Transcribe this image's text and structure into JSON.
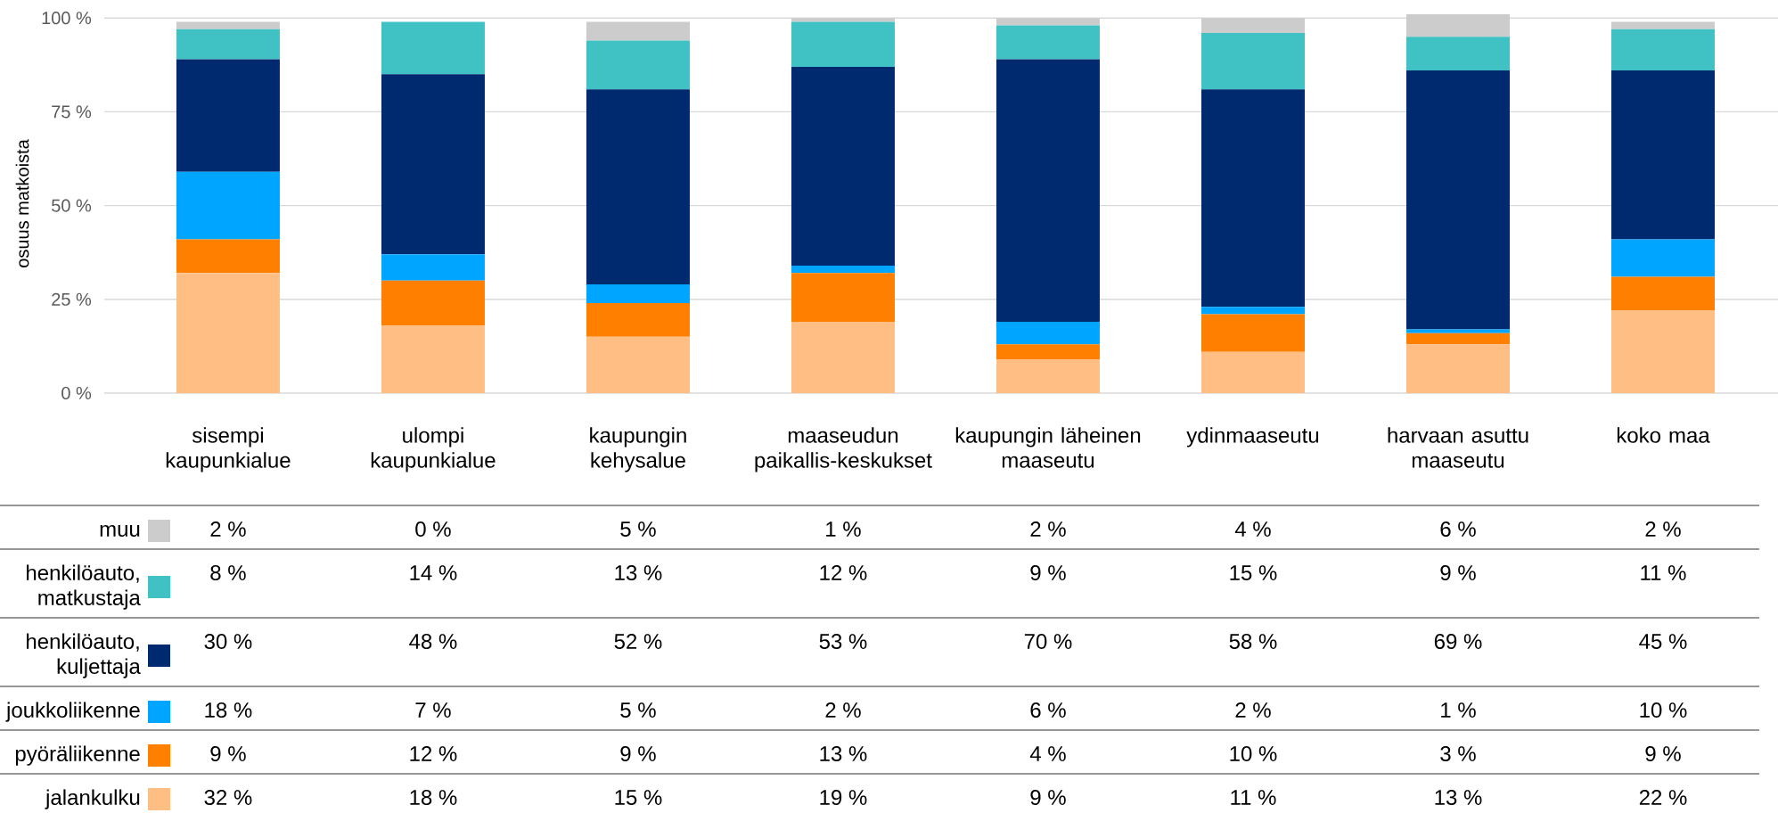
{
  "chart_data": {
    "type": "bar",
    "stacked": true,
    "ylabel": "osuus matkoista",
    "categories": [
      "sisempi kaupunkialue",
      "ulompi kaupunkialue",
      "kaupungin kehysalue",
      "maaseudun paikallis-keskukset",
      "kaupungin läheinen maaseutu",
      "ydinmaaseutu",
      "harvaan asuttu maaseutu",
      "koko maa"
    ],
    "series": [
      {
        "name": "jalankulku",
        "color": "#ffbe84",
        "values": [
          32,
          18,
          15,
          19,
          9,
          11,
          13,
          22
        ],
        "value_labels": [
          "32 %",
          "18 %",
          "15 %",
          "19 %",
          "9 %",
          "11 %",
          "13 %",
          "22 %"
        ]
      },
      {
        "name": "pyöräliikenne",
        "color": "#ff7f00",
        "values": [
          9,
          12,
          9,
          13,
          4,
          10,
          3,
          9
        ],
        "value_labels": [
          "9 %",
          "12 %",
          "9 %",
          "13 %",
          "4 %",
          "10 %",
          "3 %",
          "9 %"
        ]
      },
      {
        "name": "joukkoliikenne",
        "color": "#00a5ff",
        "values": [
          18,
          7,
          5,
          2,
          6,
          2,
          1,
          10
        ],
        "value_labels": [
          "18 %",
          "7 %",
          "5 %",
          "2 %",
          "6 %",
          "2 %",
          "1 %",
          "10 %"
        ]
      },
      {
        "name": "henkilöauto, kuljettaja",
        "color": "#002a70",
        "values": [
          30,
          48,
          52,
          53,
          70,
          58,
          69,
          45
        ],
        "value_labels": [
          "30 %",
          "48 %",
          "52 %",
          "53 %",
          "70 %",
          "58 %",
          "69 %",
          "45 %"
        ]
      },
      {
        "name": "henkilöauto, matkustaja",
        "color": "#40c1c4",
        "values": [
          8,
          14,
          13,
          12,
          9,
          15,
          9,
          11
        ],
        "value_labels": [
          "8 %",
          "14 %",
          "13 %",
          "12 %",
          "9 %",
          "15 %",
          "9 %",
          "11 %"
        ]
      },
      {
        "name": "muu",
        "color": "#cccccc",
        "values": [
          2,
          0,
          5,
          1,
          2,
          4,
          6,
          2
        ],
        "value_labels": [
          "2 %",
          "0 %",
          "5 %",
          "1 %",
          "2 %",
          "4 %",
          "6 %",
          "2 %"
        ]
      }
    ],
    "ylim": [
      0,
      101
    ],
    "yticks": [
      {
        "value": 0,
        "label": "0 %"
      },
      {
        "value": 25,
        "label": "25 %"
      },
      {
        "value": 50,
        "label": "50 %"
      },
      {
        "value": 75,
        "label": "75 %"
      },
      {
        "value": 100,
        "label": "100 %"
      }
    ],
    "grid": "y",
    "legend": "bottom"
  }
}
